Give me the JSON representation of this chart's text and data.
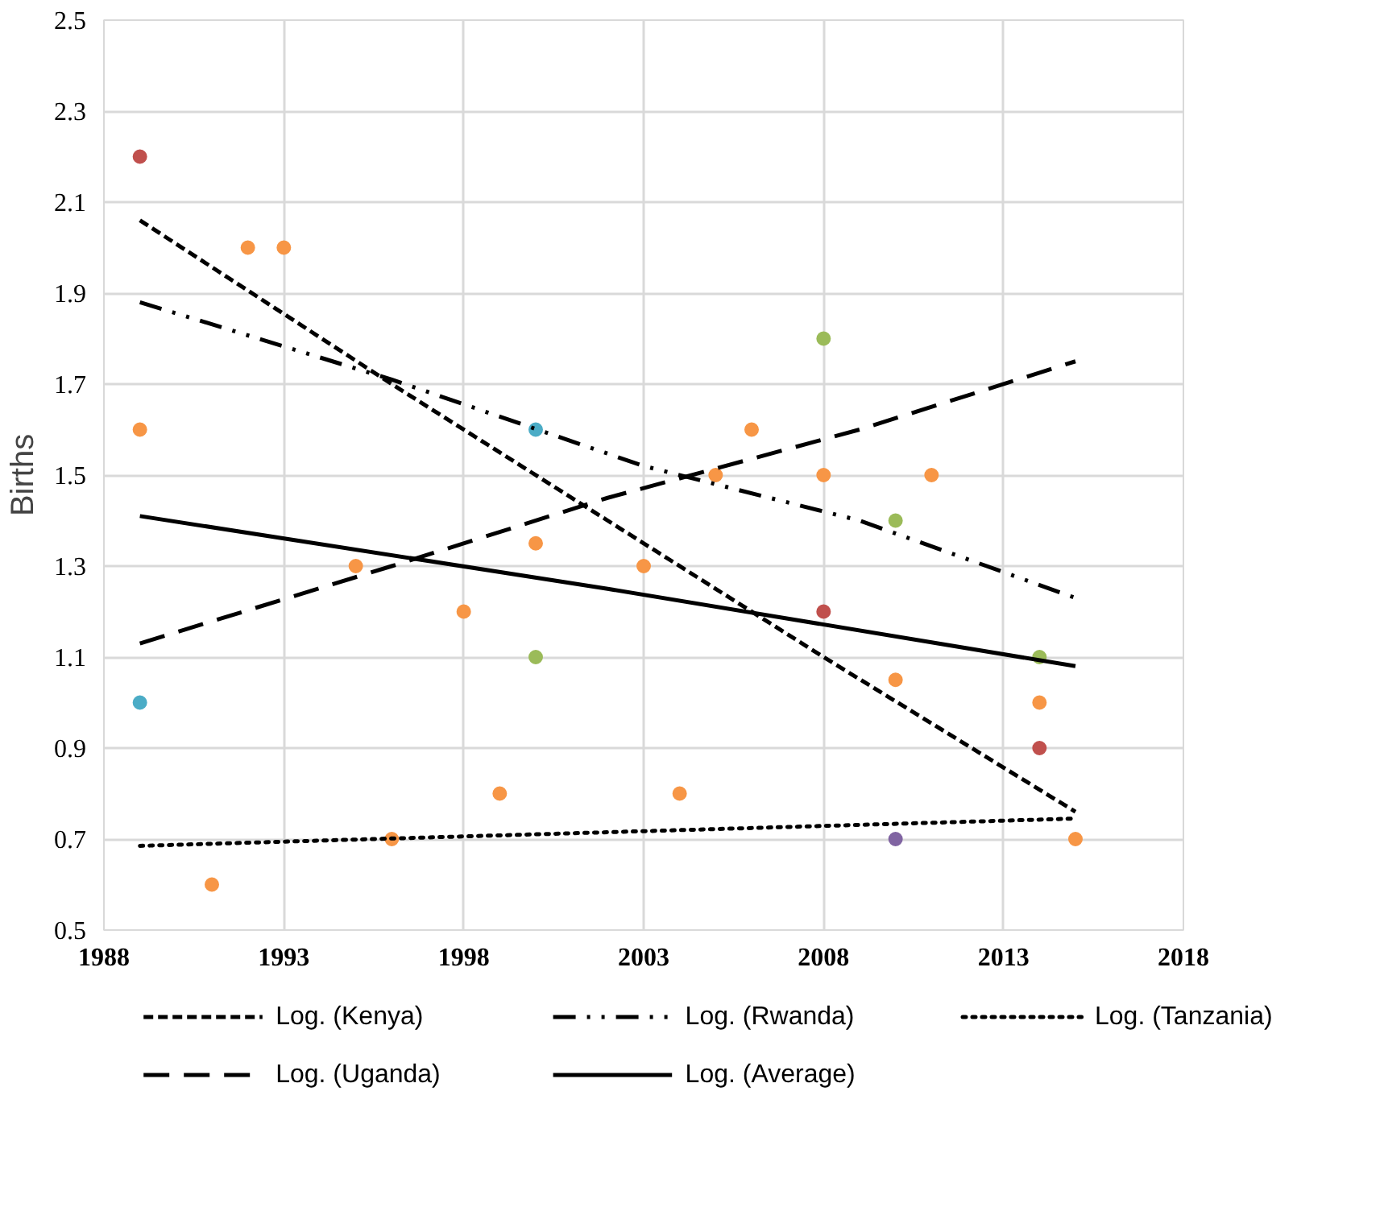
{
  "chart_data": {
    "type": "scatter",
    "ylabel": "Births",
    "xlim": [
      1988,
      2018
    ],
    "xticks": [
      1988,
      1993,
      1998,
      2003,
      2008,
      2013,
      2018
    ],
    "ylim": [
      0.5,
      2.5
    ],
    "yticks": [
      0.5,
      0.7,
      0.9,
      1.1,
      1.3,
      1.5,
      1.7,
      1.9,
      2.1,
      2.3,
      2.5
    ],
    "grid": true,
    "legend": "bottom",
    "series": [
      {
        "color": "#c0504d",
        "marker": "circle",
        "x": [
          1989,
          2008,
          2014
        ],
        "values": [
          2.2,
          1.2,
          0.9
        ]
      },
      {
        "color": "#f79646",
        "marker": "circle",
        "x": [
          1989,
          1991,
          1992,
          1993,
          1995,
          1996,
          1998,
          1999,
          2000,
          2003,
          2004,
          2005,
          2006,
          2008,
          2010,
          2011,
          2014,
          2015
        ],
        "values": [
          1.6,
          0.6,
          2.0,
          2.0,
          1.3,
          0.7,
          1.2,
          0.8,
          1.35,
          1.3,
          0.8,
          1.5,
          1.6,
          1.5,
          1.05,
          1.5,
          1.0,
          0.7
        ]
      },
      {
        "color": "#4bacc6",
        "marker": "circle",
        "x": [
          1989,
          2000
        ],
        "values": [
          1.0,
          1.6
        ]
      },
      {
        "color": "#9bbb59",
        "marker": "circle",
        "x": [
          2000,
          2008,
          2010,
          2014
        ],
        "values": [
          1.1,
          1.8,
          1.4,
          1.1
        ]
      },
      {
        "color": "#8064a2",
        "marker": "circle",
        "x": [
          2010
        ],
        "values": [
          0.7
        ]
      },
      {
        "type": "line",
        "name": "Log. (Kenya)",
        "color": "#000000",
        "line_style": "dashed",
        "x": [
          1989,
          1996,
          2002,
          2008,
          2015
        ],
        "values": [
          2.06,
          1.7,
          1.4,
          1.1,
          0.76
        ]
      },
      {
        "type": "line",
        "name": "Log. (Rwanda)",
        "color": "#000000",
        "line_style": "dashdot",
        "x": [
          1989,
          1996,
          2003,
          2009,
          2015
        ],
        "values": [
          1.88,
          1.71,
          1.52,
          1.4,
          1.23
        ]
      },
      {
        "type": "line",
        "name": "Log. (Tanzania)",
        "color": "#000000",
        "line_style": "dotted",
        "x": [
          1989,
          2002,
          2015
        ],
        "values": [
          0.685,
          0.715,
          0.745
        ]
      },
      {
        "type": "line",
        "name": "Log. (Uganda)",
        "color": "#000000",
        "line_style": "longdash",
        "x": [
          1989,
          1996,
          2002,
          2009,
          2015
        ],
        "values": [
          1.13,
          1.3,
          1.45,
          1.6,
          1.75
        ]
      },
      {
        "type": "line",
        "name": "Log. (Average)",
        "color": "#000000",
        "line_style": "solid",
        "x": [
          1989,
          2002,
          2015
        ],
        "values": [
          1.41,
          1.25,
          1.08
        ]
      }
    ]
  }
}
